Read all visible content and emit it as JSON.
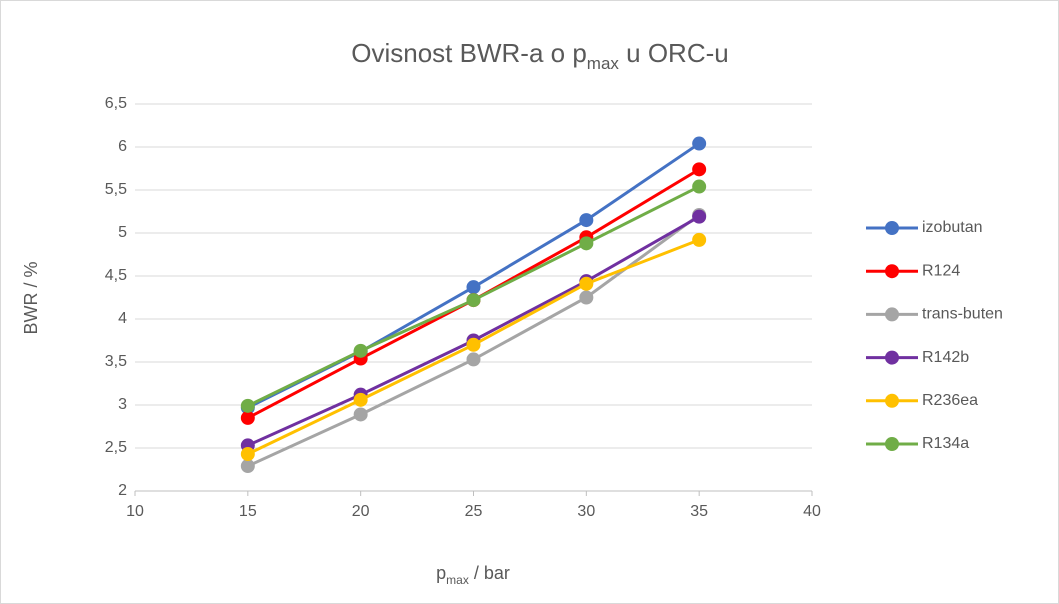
{
  "chart_data": {
    "type": "line",
    "title": [
      "Ovisnost BWR-a o p",
      "max",
      " u ORC-u"
    ],
    "x_label": [
      "p",
      "max",
      " / bar"
    ],
    "y_label": "BWR / %",
    "x": [
      15,
      20,
      25,
      30,
      35
    ],
    "series": [
      {
        "name": "izobutan",
        "color": "#4472c4",
        "values": [
          2.97,
          3.62,
          4.37,
          5.15,
          6.04
        ]
      },
      {
        "name": "R124",
        "color": "#ff0000",
        "values": [
          2.85,
          3.54,
          4.22,
          4.95,
          5.74
        ]
      },
      {
        "name": "trans-buten",
        "color": "#a5a5a5",
        "values": [
          2.29,
          2.89,
          3.53,
          4.25,
          5.21
        ]
      },
      {
        "name": "R142b",
        "color": "#7030a0",
        "values": [
          2.53,
          3.12,
          3.75,
          4.44,
          5.19
        ]
      },
      {
        "name": "R236ea",
        "color": "#ffc000",
        "values": [
          2.43,
          3.06,
          3.7,
          4.41,
          4.92
        ]
      },
      {
        "name": "R134a",
        "color": "#70ad47",
        "values": [
          2.99,
          3.63,
          4.22,
          4.88,
          5.54
        ]
      }
    ],
    "xlim": [
      10,
      40
    ],
    "xticks": [
      10,
      15,
      20,
      25,
      30,
      35,
      40
    ],
    "ylim": [
      2,
      6.5
    ],
    "yticks": [
      2,
      {
        "value": 2.5,
        "label": "2,5"
      },
      3,
      {
        "value": 3.5,
        "label": "3,5"
      },
      4,
      {
        "value": 4.5,
        "label": "4,5"
      },
      5,
      {
        "value": 5.5,
        "label": "5,5"
      },
      6,
      {
        "value": 6.5,
        "label": "6,5"
      }
    ],
    "grid": true,
    "legend": "right"
  }
}
